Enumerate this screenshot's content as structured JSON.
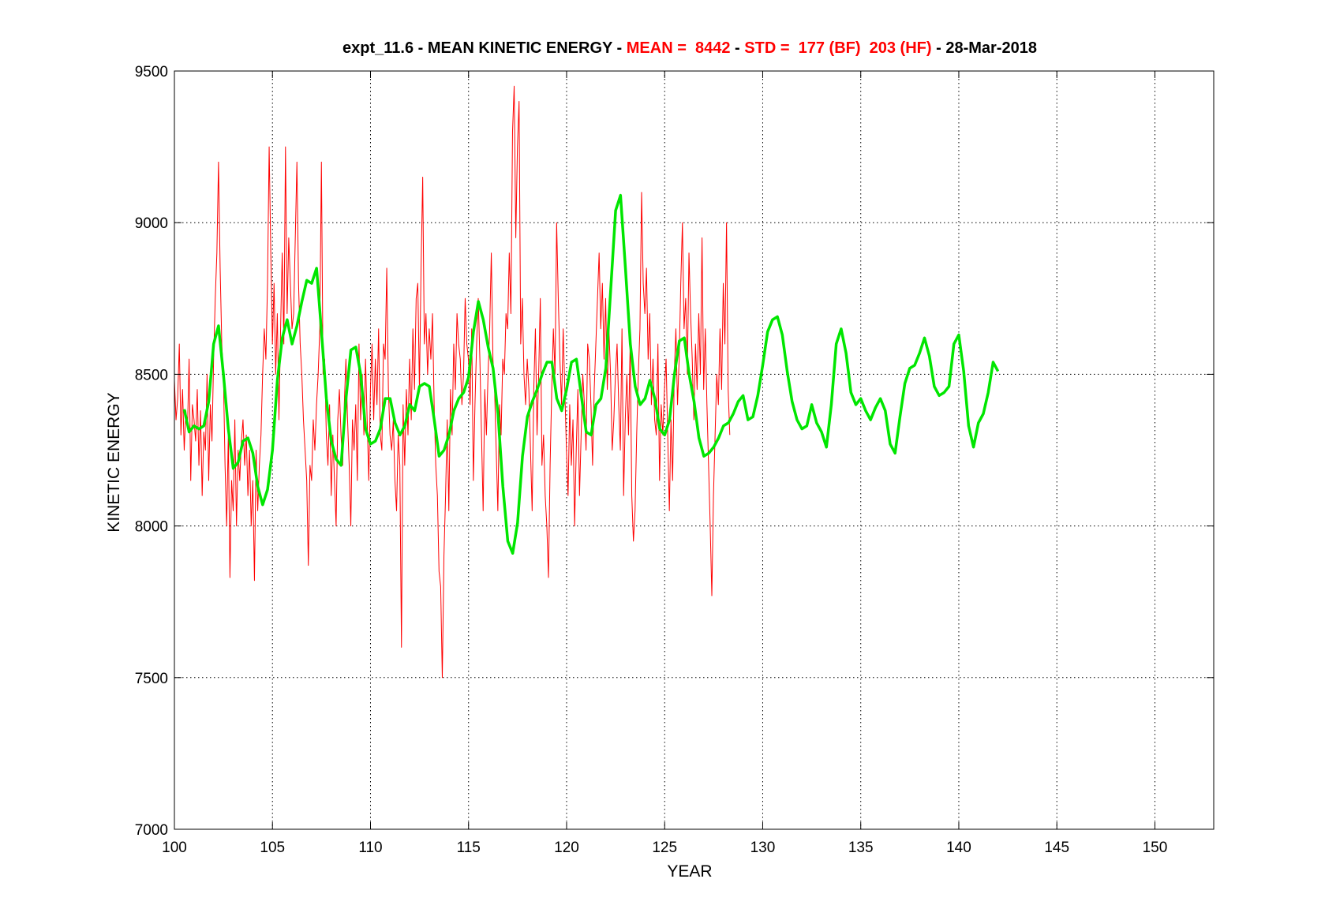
{
  "chart_data": {
    "type": "line",
    "title_parts": [
      {
        "text": "expt_11.6 - MEAN KINETIC ENERGY - ",
        "color": "#000000"
      },
      {
        "text": "MEAN =  8442",
        "color": "#ff0000"
      },
      {
        "text": " - ",
        "color": "#000000"
      },
      {
        "text": "STD =  177 (BF)  203 (HF)",
        "color": "#ff0000"
      },
      {
        "text": " - 28-Mar-2018",
        "color": "#000000"
      }
    ],
    "xlabel": "YEAR",
    "ylabel": "KINETIC ENERGY",
    "xlim": [
      100,
      153
    ],
    "ylim": [
      7000,
      9500
    ],
    "xticks": [
      100,
      105,
      110,
      115,
      120,
      125,
      130,
      135,
      140,
      145,
      150
    ],
    "yticks": [
      7000,
      7500,
      8000,
      8500,
      9000,
      9500
    ],
    "grid": true,
    "colors": {
      "raw": "#ff0000",
      "smooth": "#00e600",
      "grid": "#000000"
    },
    "series": [
      {
        "role": "raw",
        "x_start": 100,
        "x_step": 0.0833,
        "values": [
          8480,
          8350,
          8420,
          8600,
          8300,
          8450,
          8250,
          8380,
          8320,
          8550,
          8150,
          8400,
          8350,
          8280,
          8450,
          8200,
          8380,
          8100,
          8310,
          8250,
          8500,
          8150,
          8400,
          8280,
          8550,
          8750,
          8900,
          9200,
          8850,
          8600,
          8500,
          8200,
          8000,
          8300,
          7830,
          8150,
          8050,
          8350,
          8000,
          8250,
          8150,
          8280,
          8350,
          8200,
          8300,
          8100,
          8250,
          8000,
          8150,
          7820,
          8250,
          8050,
          8200,
          8300,
          8500,
          8650,
          8550,
          8800,
          9250,
          8900,
          8600,
          8800,
          8500,
          8700,
          8350,
          8650,
          8900,
          8600,
          9250,
          8700,
          8950,
          8800,
          8650,
          8700,
          8950,
          9200,
          8800,
          8600,
          8500,
          8350,
          8250,
          8150,
          7870,
          8200,
          8150,
          8350,
          8250,
          8400,
          8500,
          8650,
          9200,
          8500,
          8550,
          8300,
          8200,
          8400,
          8100,
          8300,
          8150,
          8000,
          8350,
          8450,
          8300,
          8200,
          8400,
          8550,
          8350,
          8200,
          8000,
          8350,
          8250,
          8400,
          8150,
          8600,
          8350,
          8500,
          8300,
          8550,
          8350,
          8150,
          8450,
          8600,
          8350,
          8550,
          8400,
          8650,
          8300,
          8250,
          8600,
          8550,
          8850,
          8450,
          8300,
          8250,
          8350,
          8150,
          8050,
          8300,
          8200,
          7600,
          8400,
          8200,
          8450,
          8300,
          8550,
          8350,
          8650,
          8450,
          8750,
          8800,
          8450,
          8850,
          9150,
          8600,
          8700,
          8500,
          8650,
          8550,
          8700,
          8400,
          8200,
          8100,
          7850,
          7800,
          7500,
          7900,
          8100,
          8350,
          8050,
          8450,
          8300,
          8600,
          8450,
          8700,
          8600,
          8550,
          8400,
          8500,
          8750,
          8600,
          8550,
          8400,
          8650,
          8150,
          8400,
          8600,
          8750,
          8550,
          8300,
          8050,
          8450,
          8300,
          8500,
          8650,
          8900,
          8550,
          8450,
          8250,
          8050,
          8400,
          8300,
          8550,
          8500,
          8700,
          8650,
          8900,
          8700,
          9300,
          9450,
          8950,
          9250,
          9400,
          8600,
          8750,
          8500,
          8400,
          8550,
          8450,
          8250,
          8050,
          8450,
          8650,
          8300,
          8500,
          8750,
          8200,
          8300,
          8100,
          8000,
          7830,
          8200,
          8450,
          8650,
          8500,
          9000,
          8750,
          8550,
          8400,
          8650,
          8450,
          8250,
          8100,
          8400,
          8200,
          8350,
          8000,
          8250,
          8450,
          8100,
          8300,
          8500,
          8400,
          8250,
          8600,
          8550,
          8400,
          8200,
          8450,
          8600,
          8750,
          8900,
          8650,
          8800,
          8550,
          8750,
          8450,
          8650,
          8500,
          8250,
          8350,
          8500,
          8600,
          8400,
          8250,
          8650,
          8100,
          8350,
          8500,
          8300,
          8600,
          8100,
          7950,
          8050,
          8300,
          8500,
          8650,
          9100,
          8800,
          8700,
          8850,
          8550,
          8700,
          8400,
          8550,
          8350,
          8300,
          8600,
          8150,
          8400,
          8300,
          8450,
          8550,
          8300,
          8050,
          8350,
          8150,
          8500,
          8650,
          8400,
          8550,
          8800,
          9000,
          8650,
          8750,
          8500,
          8900,
          8700,
          8550,
          8350,
          8600,
          8450,
          8700,
          8500,
          8950,
          8450,
          8650,
          8400,
          8200,
          8000,
          7770,
          8100,
          8300,
          8500,
          8400,
          8650,
          8450,
          8800,
          8600,
          9000,
          8450,
          8300
        ]
      },
      {
        "role": "smooth",
        "x_start": 100.5,
        "x_step": 0.25,
        "values": [
          8385,
          8310,
          8330,
          8320,
          8330,
          8410,
          8600,
          8660,
          8500,
          8320,
          8190,
          8210,
          8280,
          8290,
          8240,
          8130,
          8070,
          8120,
          8250,
          8480,
          8620,
          8680,
          8600,
          8660,
          8740,
          8810,
          8800,
          8850,
          8640,
          8420,
          8280,
          8220,
          8200,
          8420,
          8580,
          8590,
          8500,
          8320,
          8270,
          8280,
          8320,
          8420,
          8420,
          8340,
          8300,
          8330,
          8400,
          8380,
          8460,
          8470,
          8460,
          8350,
          8230,
          8250,
          8300,
          8380,
          8420,
          8440,
          8490,
          8640,
          8740,
          8680,
          8590,
          8520,
          8370,
          8130,
          7950,
          7910,
          8010,
          8230,
          8360,
          8410,
          8450,
          8500,
          8540,
          8540,
          8420,
          8380,
          8450,
          8540,
          8550,
          8430,
          8310,
          8300,
          8400,
          8420,
          8520,
          8780,
          9040,
          9090,
          8850,
          8600,
          8460,
          8400,
          8420,
          8480,
          8420,
          8320,
          8300,
          8350,
          8500,
          8610,
          8620,
          8500,
          8410,
          8290,
          8230,
          8240,
          8260,
          8290,
          8330,
          8340,
          8370,
          8410,
          8430,
          8350,
          8360,
          8430,
          8530,
          8640,
          8680,
          8690,
          8630,
          8510,
          8410,
          8350,
          8320,
          8330,
          8400,
          8340,
          8310,
          8260,
          8400,
          8600,
          8650,
          8570,
          8440,
          8400,
          8420,
          8380,
          8350,
          8390,
          8420,
          8380,
          8270,
          8240,
          8360,
          8470,
          8520,
          8530,
          8570,
          8620,
          8560,
          8460,
          8430,
          8440,
          8460,
          8600,
          8630,
          8510,
          8330,
          8260,
          8340,
          8370,
          8440,
          8540,
          8510
        ]
      }
    ]
  }
}
